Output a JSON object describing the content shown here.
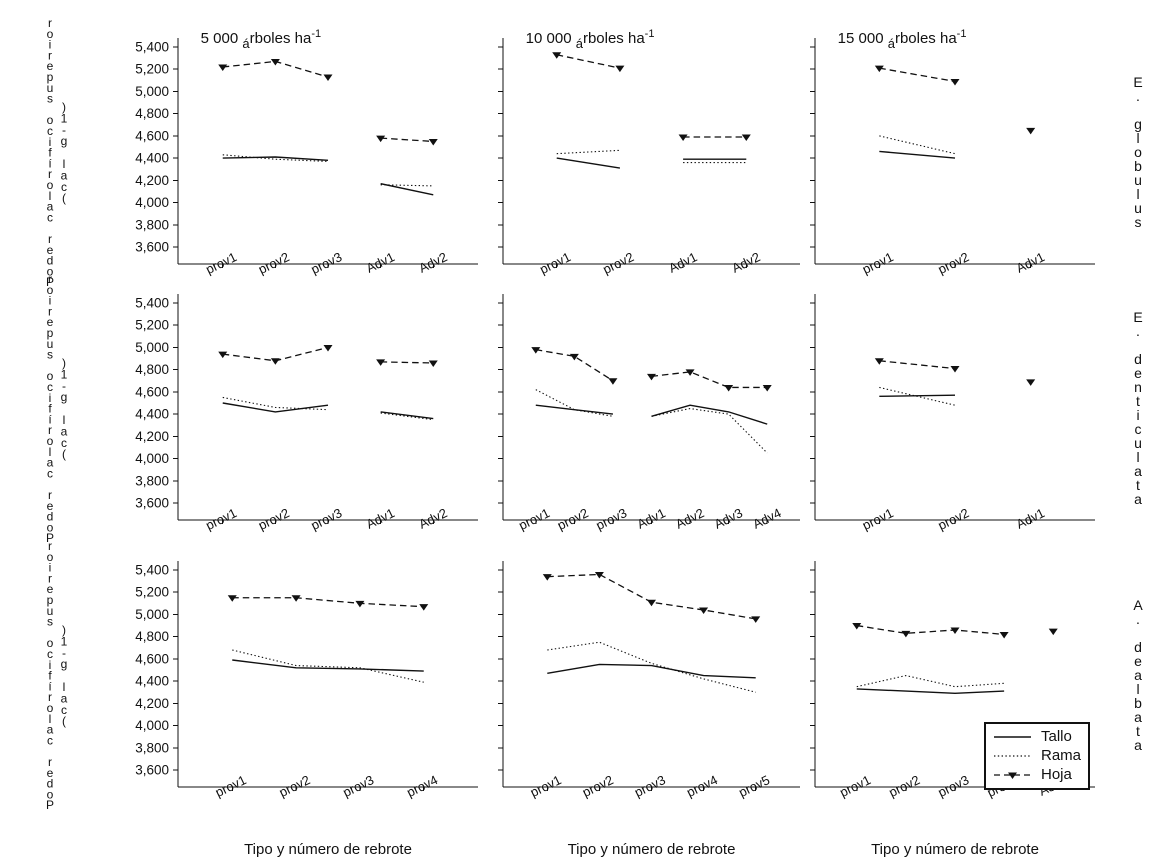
{
  "figure": {
    "y_label_main": "Poder calorífico superior",
    "y_label_unit": "(cal g-1)",
    "x_axis_label": "Tipo y número de rebrote",
    "row_species": [
      "E. globulus",
      "E. denticulata",
      "A. dealbata"
    ],
    "col_titles": [
      {
        "num": "5 000 ",
        "a": "á",
        "rest": "rboles ha",
        "sup": "-1"
      },
      {
        "num": "10 000 ",
        "a": "á",
        "rest": "rboles ha",
        "sup": "-1"
      },
      {
        "num": "15 000 ",
        "a": "á",
        "rest": "rboles ha",
        "sup": "-1"
      }
    ]
  },
  "legend": {
    "items": [
      {
        "key": "tallo",
        "label": "Tallo"
      },
      {
        "key": "rama",
        "label": "Rama"
      },
      {
        "key": "hoja",
        "label": "Hoja"
      }
    ]
  },
  "chart_data": {
    "type": "line",
    "title": "",
    "xlabel": "Tipo y número de rebrote",
    "ylabel": "Poder calorífico superior (cal g-1)",
    "ylim": [
      3600,
      5400
    ],
    "y_tick_values": [
      3600,
      3800,
      4000,
      4200,
      4400,
      4600,
      4800,
      5000,
      5200,
      5400
    ],
    "y_tick_labels": [
      "3,600",
      "3,800",
      "4,000",
      "4,200",
      "4,400",
      "4,600",
      "4,800",
      "5,000",
      "5,200",
      "5,400"
    ],
    "series_keys": [
      "tallo",
      "rama",
      "hoja"
    ],
    "rows": [
      "E. globulus",
      "E. denticulata",
      "A. dealbata"
    ],
    "cols": [
      "5 000 árboles ha-1",
      "10 000 árboles ha-1",
      "15 000 árboles ha-1"
    ],
    "panels": [
      {
        "row": 0,
        "col": 0,
        "categories": [
          "prov1",
          "prov2",
          "prov3",
          "Adv1",
          "Adv2"
        ],
        "split": 3,
        "series": {
          "tallo": [
            4400,
            4410,
            4380,
            4170,
            4070
          ],
          "rama": [
            4430,
            4390,
            4370,
            4160,
            4150
          ],
          "hoja": [
            5220,
            5270,
            5130,
            4580,
            4550
          ]
        }
      },
      {
        "row": 0,
        "col": 1,
        "categories": [
          "prov1",
          "prov2",
          "Adv1",
          "Adv2"
        ],
        "split": 2,
        "series": {
          "tallo": [
            4400,
            4310,
            4390,
            4390
          ],
          "rama": [
            4440,
            4470,
            4360,
            4360
          ],
          "hoja": [
            5330,
            5210,
            4590,
            4590
          ]
        }
      },
      {
        "row": 0,
        "col": 2,
        "categories": [
          "prov1",
          "prov2",
          "Adv1"
        ],
        "split": 2,
        "series": {
          "tallo": [
            4460,
            4400,
            null
          ],
          "rama": [
            4600,
            4440,
            null
          ],
          "hoja": [
            5210,
            5090,
            4650
          ]
        }
      },
      {
        "row": 1,
        "col": 0,
        "categories": [
          "prov1",
          "prov2",
          "prov3",
          "Adv1",
          "Adv2"
        ],
        "split": 3,
        "series": {
          "tallo": [
            4500,
            4420,
            4480,
            4420,
            4360
          ],
          "rama": [
            4550,
            4460,
            4440,
            4410,
            4350
          ],
          "hoja": [
            4940,
            4880,
            5000,
            4870,
            4860
          ]
        }
      },
      {
        "row": 1,
        "col": 1,
        "categories": [
          "prov1",
          "prov2",
          "prov3",
          "Adv1",
          "Adv2",
          "Adv3",
          "Adv4"
        ],
        "split": 3,
        "series": {
          "tallo": [
            4480,
            4440,
            4400,
            4380,
            4480,
            4420,
            4310
          ],
          "rama": [
            4620,
            4440,
            4380,
            4380,
            4450,
            4400,
            4050
          ],
          "hoja": [
            4980,
            4920,
            4700,
            4740,
            4780,
            4640,
            4640
          ]
        }
      },
      {
        "row": 1,
        "col": 2,
        "categories": [
          "prov1",
          "prov2",
          "Adv1"
        ],
        "split": 2,
        "series": {
          "tallo": [
            4560,
            4570,
            null
          ],
          "rama": [
            4640,
            4480,
            null
          ],
          "hoja": [
            4880,
            4810,
            4690
          ]
        }
      },
      {
        "row": 2,
        "col": 0,
        "categories": [
          "prov1",
          "prov2",
          "prov3",
          "prov4"
        ],
        "split": null,
        "series": {
          "tallo": [
            4590,
            4520,
            4510,
            4490
          ],
          "rama": [
            4680,
            4540,
            4520,
            4390
          ],
          "hoja": [
            5150,
            5150,
            5100,
            5070
          ]
        }
      },
      {
        "row": 2,
        "col": 1,
        "categories": [
          "prov1",
          "prov2",
          "prov3",
          "prov4",
          "prov5"
        ],
        "split": null,
        "series": {
          "tallo": [
            4470,
            4550,
            4540,
            4450,
            4430
          ],
          "rama": [
            4680,
            4750,
            4560,
            4420,
            4300
          ],
          "hoja": [
            5340,
            5360,
            5110,
            5040,
            4960
          ]
        }
      },
      {
        "row": 2,
        "col": 2,
        "categories": [
          "prov1",
          "prov2",
          "prov3",
          "prov4",
          "Adv1"
        ],
        "split": 4,
        "series": {
          "tallo": [
            4330,
            4310,
            4290,
            4310,
            null
          ],
          "rama": [
            4350,
            4450,
            4350,
            4380,
            null
          ],
          "hoja": [
            4900,
            4830,
            4860,
            4820,
            4850
          ]
        }
      }
    ]
  }
}
